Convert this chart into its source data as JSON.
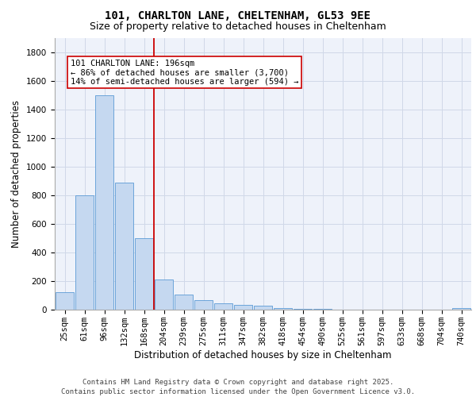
{
  "title_line1": "101, CHARLTON LANE, CHELTENHAM, GL53 9EE",
  "title_line2": "Size of property relative to detached houses in Cheltenham",
  "xlabel": "Distribution of detached houses by size in Cheltenham",
  "ylabel": "Number of detached properties",
  "categories": [
    "25sqm",
    "61sqm",
    "96sqm",
    "132sqm",
    "168sqm",
    "204sqm",
    "239sqm",
    "275sqm",
    "311sqm",
    "347sqm",
    "382sqm",
    "418sqm",
    "454sqm",
    "490sqm",
    "525sqm",
    "561sqm",
    "597sqm",
    "633sqm",
    "668sqm",
    "704sqm",
    "740sqm"
  ],
  "values": [
    120,
    800,
    1500,
    885,
    500,
    210,
    108,
    65,
    42,
    32,
    27,
    10,
    5,
    3,
    2,
    2,
    1,
    1,
    0,
    0,
    12
  ],
  "bar_color": "#c5d8f0",
  "bar_edge_color": "#5b9bd5",
  "vline_pos": 4.5,
  "vline_color": "#cc0000",
  "annotation_text": "101 CHARLTON LANE: 196sqm\n← 86% of detached houses are smaller (3,700)\n14% of semi-detached houses are larger (594) →",
  "annotation_box_color": "#ffffff",
  "annotation_box_edge": "#cc0000",
  "ylim": [
    0,
    1900
  ],
  "yticks": [
    0,
    200,
    400,
    600,
    800,
    1000,
    1200,
    1400,
    1600,
    1800
  ],
  "grid_color": "#d0d8e8",
  "bg_color": "#eef2fa",
  "footer": "Contains HM Land Registry data © Crown copyright and database right 2025.\nContains public sector information licensed under the Open Government Licence v3.0.",
  "title_fontsize": 10,
  "subtitle_fontsize": 9,
  "axis_label_fontsize": 8.5,
  "tick_fontsize": 7.5,
  "annotation_fontsize": 7.5,
  "footer_fontsize": 6.5
}
